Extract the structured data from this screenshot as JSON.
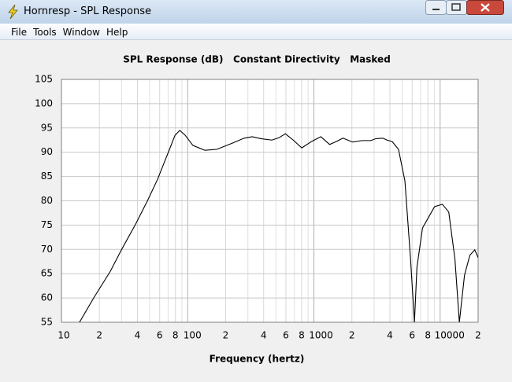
{
  "window": {
    "title": "Hornresp - SPL Response",
    "menu": [
      "File",
      "Tools",
      "Window",
      "Help"
    ]
  },
  "chart_data": {
    "type": "line",
    "title": "SPL Response (dB)   Constant Directivity   Masked",
    "x_label": "Frequency (hertz)",
    "log_x": true,
    "grid": true,
    "color": "#000000",
    "xlim": [
      10,
      20000
    ],
    "xticks": [
      10,
      {
        "value": 20,
        "label": "2"
      },
      {
        "value": 40,
        "label": "4"
      },
      {
        "value": 60,
        "label": "6"
      },
      {
        "value": 80,
        "label": "8"
      },
      100,
      {
        "value": 200,
        "label": "2"
      },
      {
        "value": 400,
        "label": "4"
      },
      {
        "value": 600,
        "label": "6"
      },
      {
        "value": 800,
        "label": "8"
      },
      1000,
      {
        "value": 2000,
        "label": "2"
      },
      {
        "value": 4000,
        "label": "4"
      },
      {
        "value": 6000,
        "label": "6"
      },
      {
        "value": 8000,
        "label": "8"
      },
      10000,
      {
        "value": 20000,
        "label": "2"
      }
    ],
    "xgrid_minor": [
      30,
      50,
      70,
      90,
      300,
      500,
      700,
      900,
      3000,
      5000,
      7000,
      9000
    ],
    "ylim": [
      55,
      105
    ],
    "yticks": [
      55,
      60,
      65,
      70,
      75,
      80,
      85,
      90,
      95,
      100,
      105
    ],
    "x": [
      13.9,
      18,
      24.4,
      30,
      38.7,
      48,
      57.9,
      65,
      71.8,
      79.4,
      86.6,
      95.6,
      110,
      137,
      170,
      227,
      280,
      325,
      380,
      465,
      530,
      594,
      686,
      802,
      956,
      1135,
      1333,
      1500,
      1700,
      2022,
      2400,
      2820,
      3100,
      3510,
      3800,
      4170,
      4680,
      5260,
      5830,
      6260,
      6550,
      7250,
      9030,
      10400,
      11700,
      13100,
      14200,
      15600,
      17200,
      18800,
      20000
    ],
    "values": [
      55,
      60,
      65.5,
      70,
      75.2,
      80,
      84.5,
      87.8,
      90.6,
      93.5,
      94.5,
      93.5,
      91.4,
      90.4,
      90.6,
      91.9,
      92.9,
      93.2,
      92.8,
      92.5,
      93.0,
      93.8,
      92.5,
      90.9,
      92.2,
      93.2,
      91.6,
      92.2,
      92.9,
      92.1,
      92.4,
      92.4,
      92.8,
      92.9,
      92.5,
      92.2,
      90.6,
      84.1,
      68.0,
      55,
      66.3,
      74.4,
      78.8,
      79.3,
      77.7,
      68.0,
      55,
      64.7,
      68.8,
      69.9,
      68.3
    ]
  }
}
